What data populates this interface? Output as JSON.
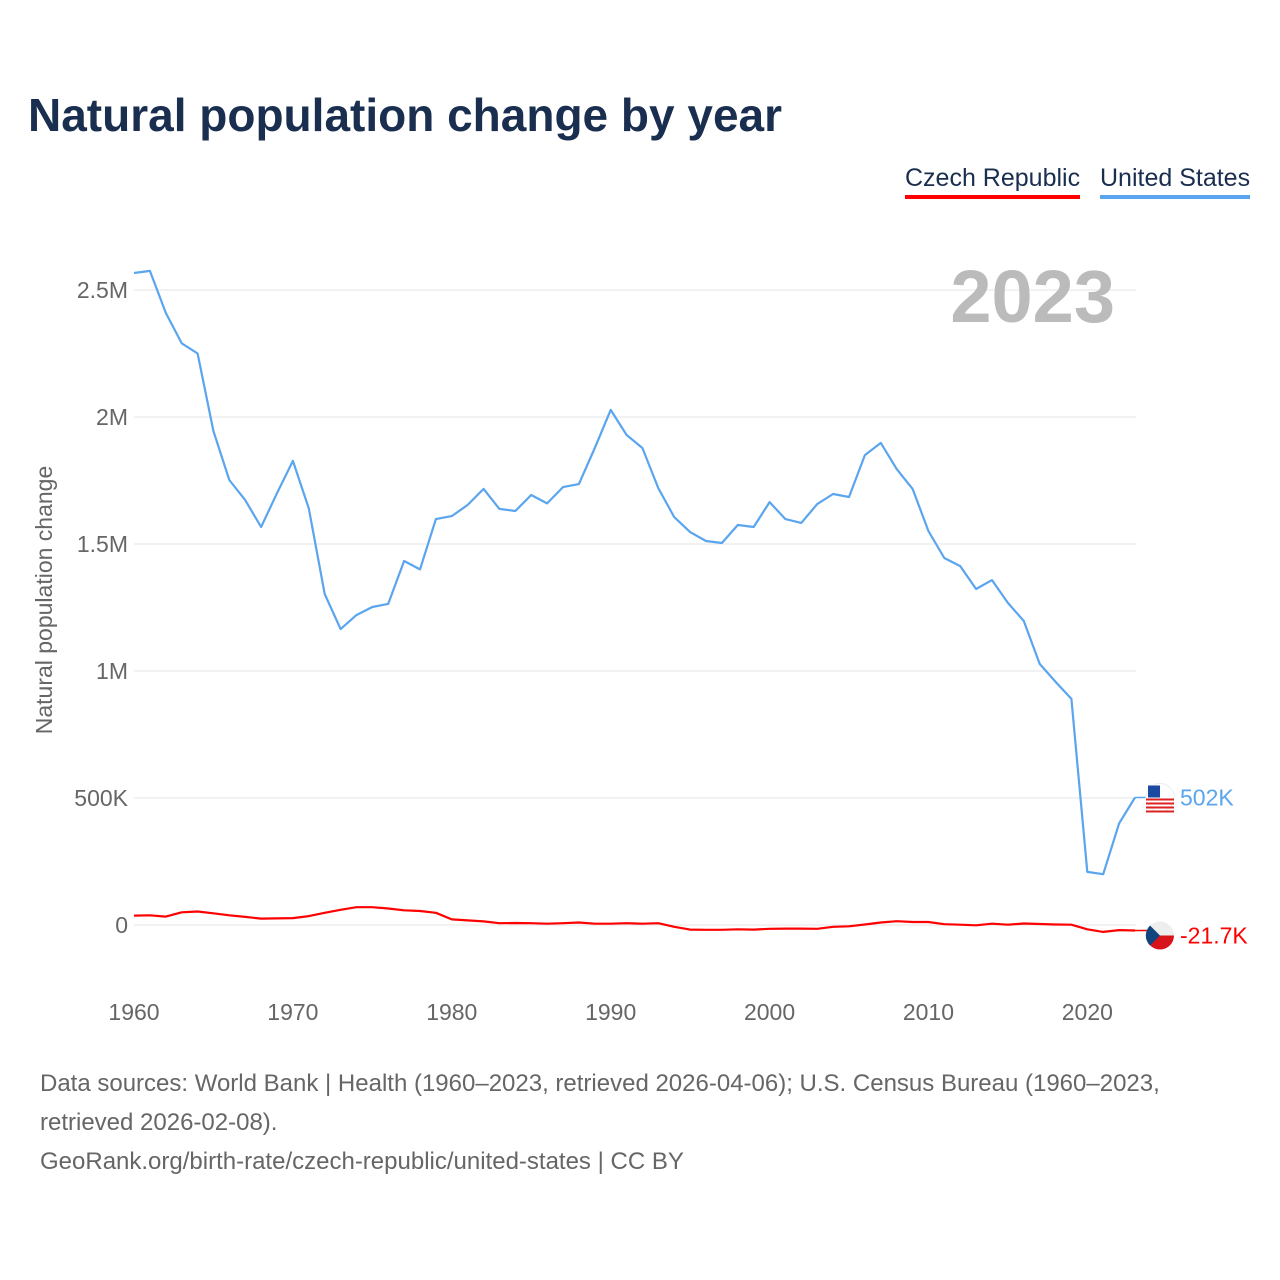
{
  "title": "Natural population change by year",
  "legend": [
    {
      "name": "Czech Republic",
      "color": "#ff0000"
    },
    {
      "name": "United States",
      "color": "#5aa5ee"
    }
  ],
  "chart_data": {
    "type": "line",
    "title": "Natural population change by year",
    "ylabel": "Natural population change",
    "xlabel": "",
    "year_watermark": "2023",
    "xlim": [
      1960,
      2023
    ],
    "ylim": [
      -200000,
      2650000
    ],
    "x_ticks": [
      1960,
      1970,
      1980,
      1990,
      2000,
      2010,
      2020
    ],
    "x_tick_labels": [
      "1960",
      "1970",
      "1980",
      "1990",
      "2000",
      "2010",
      "2020"
    ],
    "y_ticks": [
      0,
      500000,
      1000000,
      1500000,
      2000000,
      2500000
    ],
    "y_tick_labels": [
      "0",
      "500K",
      "1M",
      "1.5M",
      "2M",
      "2.5M"
    ],
    "grid": true,
    "legend_position": "top-right",
    "x": [
      1960,
      1961,
      1962,
      1963,
      1964,
      1965,
      1966,
      1967,
      1968,
      1969,
      1970,
      1971,
      1972,
      1973,
      1974,
      1975,
      1976,
      1977,
      1978,
      1979,
      1980,
      1981,
      1982,
      1983,
      1984,
      1985,
      1986,
      1987,
      1988,
      1989,
      1990,
      1991,
      1992,
      1993,
      1994,
      1995,
      1996,
      1997,
      1998,
      1999,
      2000,
      2001,
      2002,
      2003,
      2004,
      2005,
      2006,
      2007,
      2008,
      2009,
      2010,
      2011,
      2012,
      2013,
      2014,
      2015,
      2016,
      2017,
      2018,
      2019,
      2020,
      2021,
      2022,
      2023
    ],
    "series": [
      {
        "name": "United States",
        "color": "#5aa5ee",
        "end_label": "502K",
        "values": [
          2567000,
          2575000,
          2410000,
          2290000,
          2250000,
          1945000,
          1752000,
          1673000,
          1567000,
          1700000,
          1827000,
          1640000,
          1303000,
          1165000,
          1220000,
          1252000,
          1264000,
          1433000,
          1400000,
          1598000,
          1610000,
          1654000,
          1717000,
          1638000,
          1630000,
          1693000,
          1660000,
          1724000,
          1736000,
          1878000,
          2028000,
          1929000,
          1878000,
          1720000,
          1606000,
          1547000,
          1512000,
          1504000,
          1575000,
          1567000,
          1665000,
          1598000,
          1583000,
          1657000,
          1697000,
          1685000,
          1850000,
          1898000,
          1795000,
          1717000,
          1551000,
          1445000,
          1413000,
          1323000,
          1358000,
          1268000,
          1197000,
          1028000,
          957000,
          890000,
          209000,
          200000,
          400000,
          502000
        ]
      },
      {
        "name": "Czech Republic",
        "color": "#ff0000",
        "end_label": "-21.7K",
        "values": [
          37000,
          38000,
          33000,
          50000,
          53000,
          46000,
          38000,
          32000,
          25000,
          26000,
          27000,
          35000,
          48000,
          60000,
          70000,
          70000,
          65000,
          58000,
          55000,
          48000,
          22000,
          18000,
          14000,
          7000,
          8000,
          7000,
          5000,
          7000,
          10000,
          5000,
          5000,
          7000,
          5000,
          7000,
          -7000,
          -18000,
          -19000,
          -19000,
          -17000,
          -18000,
          -15000,
          -14000,
          -14000,
          -15000,
          -7000,
          -5000,
          2000,
          10000,
          15000,
          12000,
          12000,
          3000,
          1000,
          -1000,
          5000,
          1000,
          6000,
          4000,
          2000,
          1000,
          -17000,
          -27000,
          -20000,
          -21700
        ]
      }
    ]
  },
  "footer": {
    "sources": "Data sources: World Bank | Health (1960–2023, retrieved 2026-04-06); U.S. Census Bureau (1960–2023, retrieved 2026-02-08).",
    "link": "GeoRank.org/birth-rate/czech-republic/united-states | CC BY"
  }
}
